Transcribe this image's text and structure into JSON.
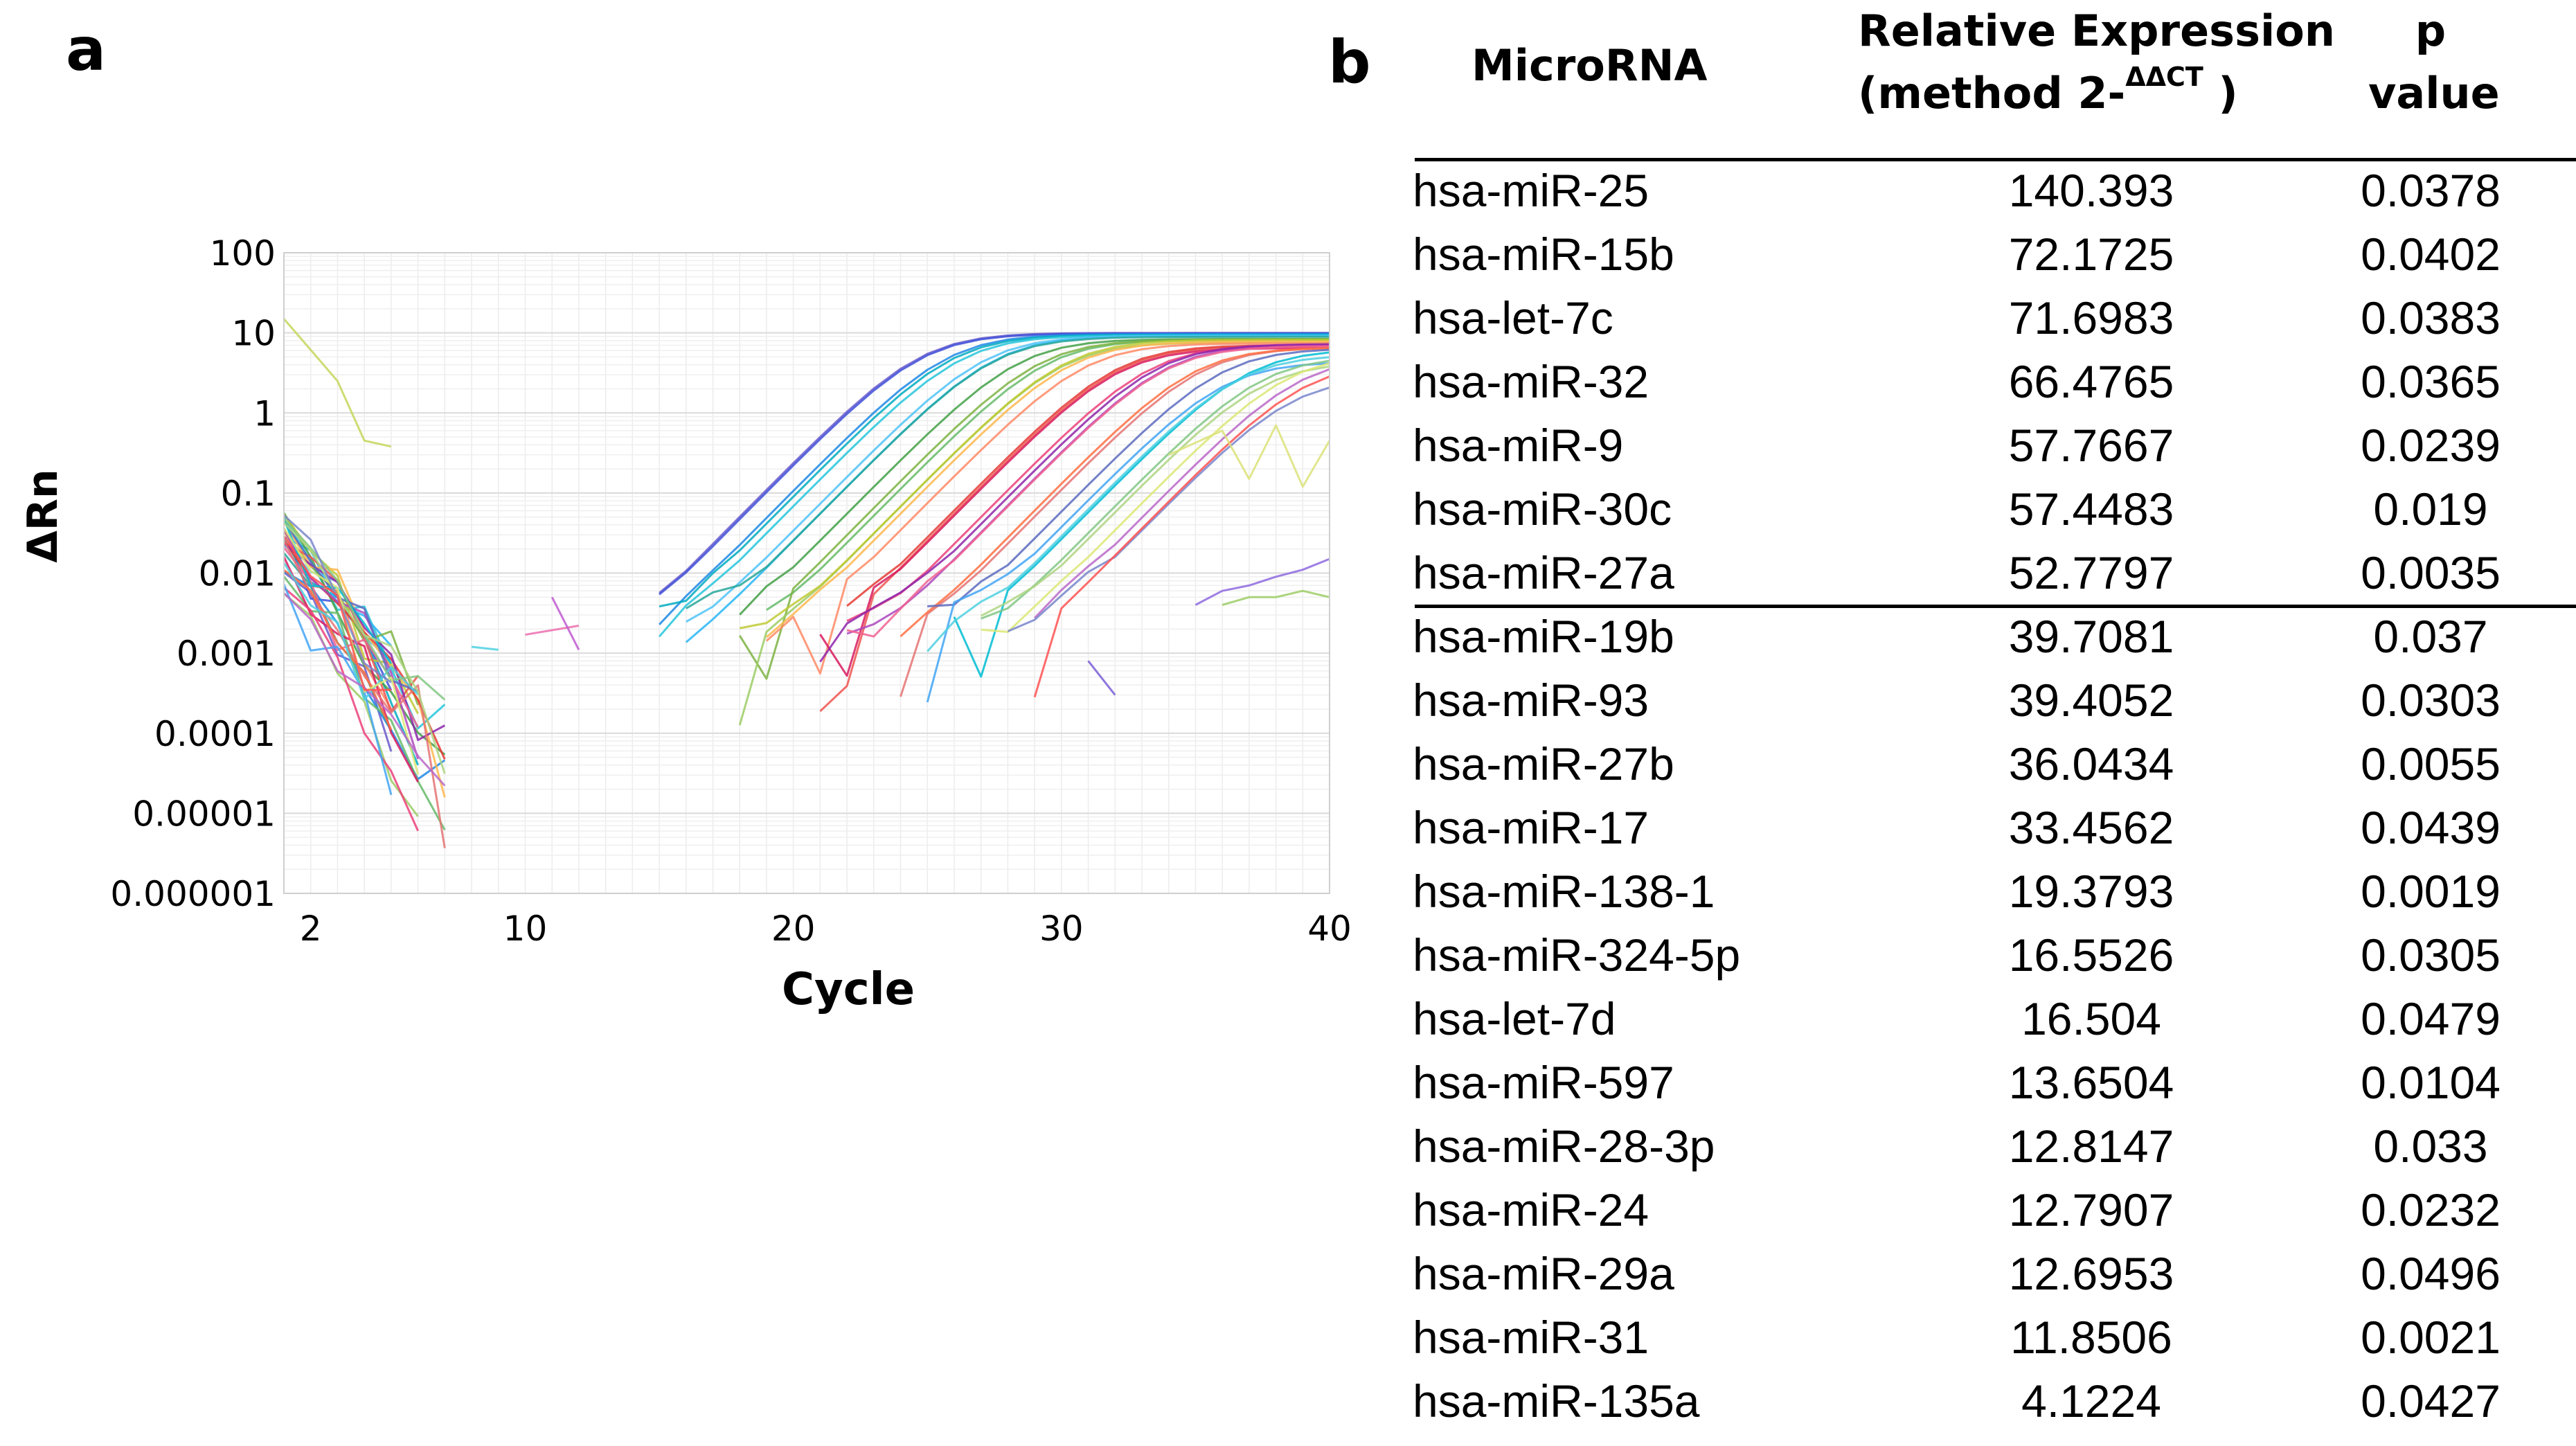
{
  "panels": {
    "a": "a",
    "b": "b"
  },
  "chart_data": {
    "type": "line",
    "title": "",
    "xlabel": "Cycle",
    "ylabel": "ΔRn",
    "yscale": "log",
    "xlim": [
      1,
      40
    ],
    "ylim": [
      1e-06,
      100
    ],
    "x_ticks": [
      2,
      10,
      20,
      30,
      40
    ],
    "y_tick_values": [
      100,
      10,
      1,
      0.1,
      0.01,
      0.001,
      0.0001,
      1e-05,
      1e-06
    ],
    "y_tick_labels": [
      "100",
      "10",
      "1",
      "0.1",
      "0.01",
      "0.001",
      "0.0001",
      "0.00001",
      "0.000001"
    ],
    "grid": true,
    "amplification_curves": {
      "count": 34,
      "ct_cycle_range": [
        18,
        34
      ],
      "plateau_range": [
        2.5,
        10
      ],
      "baseline_start_range": [
        0.005,
        0.05
      ],
      "colors": [
        "#6a5acd",
        "#3f51d8",
        "#1e88e5",
        "#00acc1",
        "#26c6da",
        "#29b6f6",
        "#4fc3f7",
        "#26a69a",
        "#43a047",
        "#66bb6a",
        "#7cb342",
        "#9ccc65",
        "#c0ca33",
        "#ffb74d",
        "#ff8a65",
        "#ef5350",
        "#e53935",
        "#d81b60",
        "#ec407a",
        "#ab47bc",
        "#8e24aa",
        "#f06292",
        "#e57373",
        "#ff7043",
        "#5c6bc0",
        "#42a5f5",
        "#00bcd4",
        "#4dd0e1",
        "#81c784",
        "#aed581",
        "#dce775",
        "#ba68c8",
        "#7986cb",
        "#ff5252"
      ]
    },
    "outlier_traces": [
      {
        "color": "#c6d65a",
        "x": [
          1,
          3,
          4,
          5
        ],
        "y": [
          15,
          2.5,
          0.45,
          0.38
        ]
      },
      {
        "color": "#dce27a",
        "x": [
          34,
          36,
          37,
          38,
          39,
          40
        ],
        "y": [
          0.3,
          0.6,
          0.15,
          0.7,
          0.12,
          0.45
        ]
      },
      {
        "color": "#8e6adf",
        "x": [
          35,
          36,
          37,
          38,
          39,
          40
        ],
        "y": [
          0.004,
          0.006,
          0.007,
          0.009,
          0.011,
          0.015
        ]
      },
      {
        "color": "#9ccc65",
        "x": [
          36,
          37,
          38,
          39,
          40
        ],
        "y": [
          0.004,
          0.005,
          0.005,
          0.006,
          0.005
        ]
      },
      {
        "color": "#7b5fd6",
        "x": [
          31,
          32
        ],
        "y": [
          0.0008,
          0.0003
        ]
      },
      {
        "color": "#ec6fb0",
        "x": [
          10,
          12
        ],
        "y": [
          0.0017,
          0.0022
        ]
      },
      {
        "color": "#4dd0e1",
        "x": [
          8,
          9
        ],
        "y": [
          0.0012,
          0.0011
        ]
      },
      {
        "color": "#c05bd0",
        "x": [
          11,
          12
        ],
        "y": [
          0.005,
          0.0011
        ]
      }
    ]
  },
  "table": {
    "headers": {
      "microrna": "MicroRNA",
      "rel_line1": "Relative Expression",
      "rel_line2_pre": "(method 2-",
      "rel_line2_sup": "ΔΔCT",
      "rel_line2_post": " )",
      "p_line1": "p",
      "p_line2": "value"
    },
    "rows": [
      {
        "microrna": "hsa-miR-25",
        "expression": "140.393",
        "p_value": "0.0378"
      },
      {
        "microrna": "hsa-miR-15b",
        "expression": "72.1725",
        "p_value": "0.0402"
      },
      {
        "microrna": "hsa-let-7c",
        "expression": "71.6983",
        "p_value": "0.0383"
      },
      {
        "microrna": "hsa-miR-32",
        "expression": "66.4765",
        "p_value": "0.0365"
      },
      {
        "microrna": "hsa-miR-9",
        "expression": "57.7667",
        "p_value": "0.0239"
      },
      {
        "microrna": "hsa-miR-30c",
        "expression": "57.4483",
        "p_value": "0.019"
      },
      {
        "microrna": "hsa-miR-27a",
        "expression": "52.7797",
        "p_value": "0.0035"
      },
      {
        "microrna": "hsa-miR-19b",
        "expression": "39.7081",
        "p_value": "0.037"
      },
      {
        "microrna": "hsa-miR-93",
        "expression": "39.4052",
        "p_value": "0.0303"
      },
      {
        "microrna": "hsa-miR-27b",
        "expression": "36.0434",
        "p_value": "0.0055"
      },
      {
        "microrna": "hsa-miR-17",
        "expression": "33.4562",
        "p_value": "0.0439"
      },
      {
        "microrna": "hsa-miR-138-1",
        "expression": "19.3793",
        "p_value": "0.0019"
      },
      {
        "microrna": "hsa-miR-324-5p",
        "expression": "16.5526",
        "p_value": "0.0305"
      },
      {
        "microrna": "hsa-let-7d",
        "expression": "16.504",
        "p_value": "0.0479"
      },
      {
        "microrna": "hsa-miR-597",
        "expression": "13.6504",
        "p_value": "0.0104"
      },
      {
        "microrna": "hsa-miR-28-3p",
        "expression": "12.8147",
        "p_value": "0.033"
      },
      {
        "microrna": "hsa-miR-24",
        "expression": "12.7907",
        "p_value": "0.0232"
      },
      {
        "microrna": "hsa-miR-29a",
        "expression": "12.6953",
        "p_value": "0.0496"
      },
      {
        "microrna": "hsa-miR-31",
        "expression": "11.8506",
        "p_value": "0.0021"
      },
      {
        "microrna": "hsa-miR-135a",
        "expression": "4.1224",
        "p_value": "0.0427"
      }
    ]
  }
}
